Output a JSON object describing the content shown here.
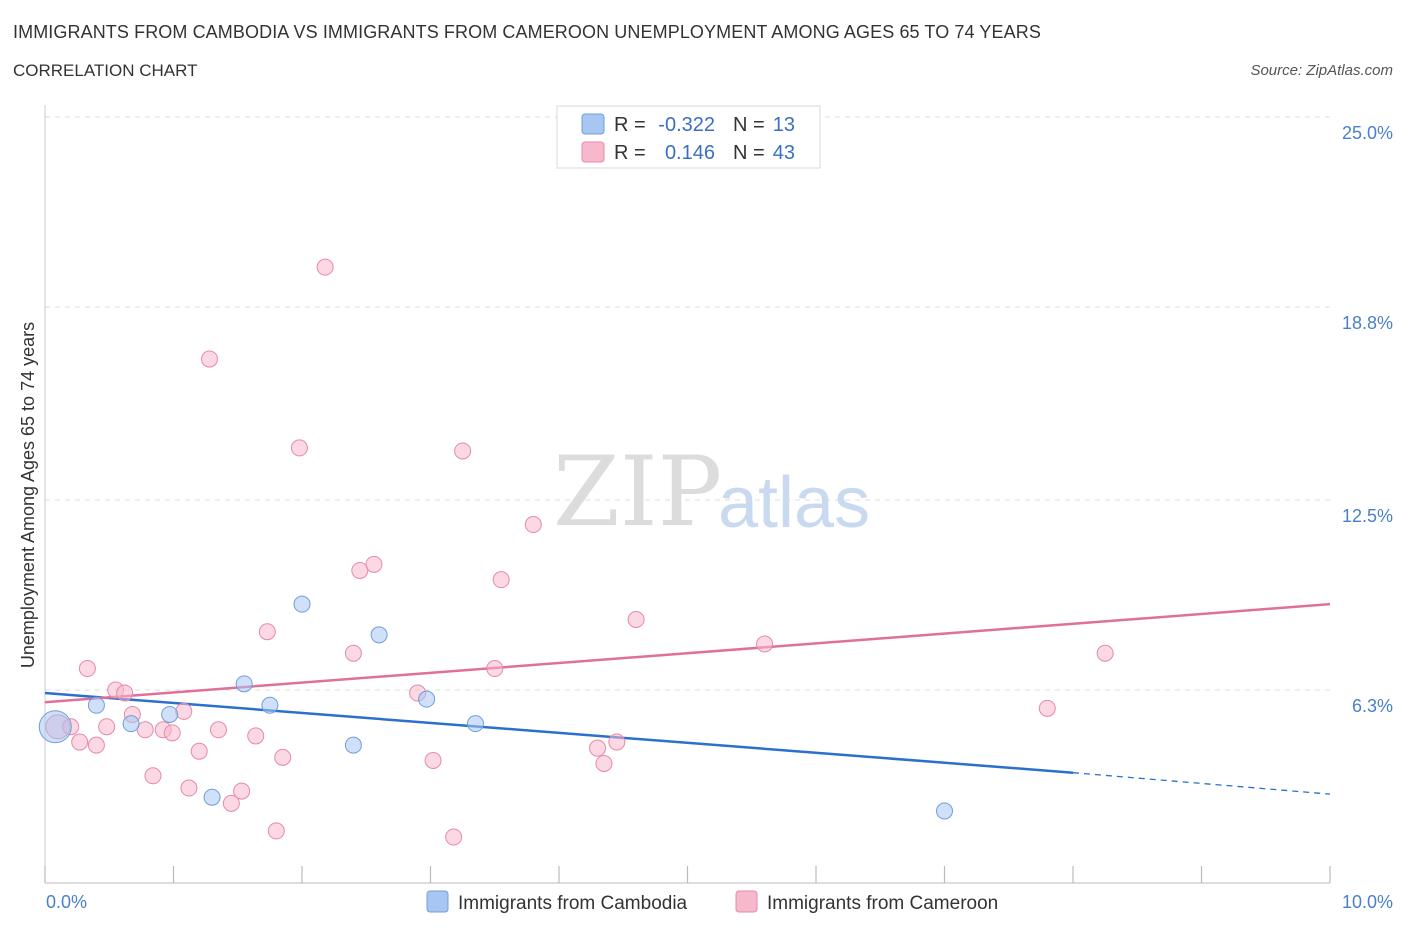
{
  "title": "IMMIGRANTS FROM CAMBODIA VS IMMIGRANTS FROM CAMEROON UNEMPLOYMENT AMONG AGES 65 TO 74 YEARS",
  "subtitle": "CORRELATION CHART",
  "source": "Source: ZipAtlas.com",
  "watermark": {
    "zip": "ZIP",
    "atlas": "atlas"
  },
  "legend": {
    "r_label": "R =",
    "n_label": "N =",
    "rows": [
      {
        "r": "-0.322",
        "n": "13",
        "color": "#a7c7f2"
      },
      {
        "r": "0.146",
        "n": "43",
        "color": "#f7b8cc"
      }
    ]
  },
  "chart_data": {
    "type": "scatter",
    "title": "IMMIGRANTS FROM CAMBODIA VS IMMIGRANTS FROM CAMEROON UNEMPLOYMENT AMONG AGES 65 TO 74 YEARS",
    "xlabel": "",
    "ylabel": "Unemployment Among Ages 65 to 74 years",
    "xlim": [
      0,
      10
    ],
    "ylim": [
      0,
      25
    ],
    "x_tick_labels": [
      "0.0%",
      "10.0%"
    ],
    "y_ticks": [
      6.3,
      12.5,
      18.8,
      25.0
    ],
    "y_tick_labels": [
      "6.3%",
      "12.5%",
      "18.8%",
      "25.0%"
    ],
    "grid": true,
    "legend_position": "top-center",
    "series": [
      {
        "name": "Immigrants from Cambodia",
        "color": "#a7c7f2",
        "edge": "#6f9edb",
        "line_color": "#2b6fcf",
        "trend": {
          "x0": 0,
          "y0": 6.2,
          "x1": 8.0,
          "y1": 3.6,
          "dash_to": 10.0,
          "dash_y": 2.9
        },
        "points": [
          [
            0.08,
            5.1,
            16
          ],
          [
            0.4,
            5.8,
            8
          ],
          [
            0.67,
            5.2,
            8
          ],
          [
            0.97,
            5.5,
            8
          ],
          [
            1.3,
            2.8,
            8
          ],
          [
            1.55,
            6.5,
            8
          ],
          [
            1.75,
            5.8,
            8
          ],
          [
            2.0,
            9.1,
            8
          ],
          [
            2.4,
            4.5,
            8
          ],
          [
            2.6,
            8.1,
            8
          ],
          [
            2.97,
            6.0,
            8
          ],
          [
            3.35,
            5.2,
            8
          ],
          [
            7.0,
            2.35,
            8
          ]
        ]
      },
      {
        "name": "Immigrants from Cameroon",
        "color": "#f7b8cc",
        "edge": "#e58aa8",
        "line_color": "#e0709a",
        "trend": {
          "x0": 0,
          "y0": 5.9,
          "x1": 10.0,
          "y1": 9.1
        },
        "points": [
          [
            0.1,
            5.1,
            12
          ],
          [
            0.2,
            5.1,
            8
          ],
          [
            0.27,
            4.6,
            8
          ],
          [
            0.33,
            7.0,
            8
          ],
          [
            0.4,
            4.5,
            8
          ],
          [
            0.48,
            5.1,
            8
          ],
          [
            0.55,
            6.3,
            8
          ],
          [
            0.62,
            6.2,
            8
          ],
          [
            0.68,
            5.5,
            8
          ],
          [
            0.78,
            5.0,
            8
          ],
          [
            0.84,
            3.5,
            8
          ],
          [
            0.92,
            5.0,
            8
          ],
          [
            0.99,
            4.9,
            8
          ],
          [
            1.08,
            5.6,
            8
          ],
          [
            1.12,
            3.1,
            8
          ],
          [
            1.2,
            4.3,
            8
          ],
          [
            1.28,
            17.1,
            8
          ],
          [
            1.35,
            5.0,
            8
          ],
          [
            1.45,
            2.6,
            8
          ],
          [
            1.53,
            3.0,
            8
          ],
          [
            1.64,
            4.8,
            8
          ],
          [
            1.73,
            8.2,
            8
          ],
          [
            1.8,
            1.7,
            8
          ],
          [
            1.85,
            4.1,
            8
          ],
          [
            1.98,
            14.2,
            8
          ],
          [
            2.18,
            20.1,
            8
          ],
          [
            2.4,
            7.5,
            8
          ],
          [
            2.45,
            10.2,
            8
          ],
          [
            2.56,
            10.4,
            8
          ],
          [
            2.9,
            6.2,
            8
          ],
          [
            3.02,
            4.0,
            8
          ],
          [
            3.18,
            1.5,
            8
          ],
          [
            3.25,
            14.1,
            8
          ],
          [
            3.5,
            7.0,
            8
          ],
          [
            3.55,
            9.9,
            8
          ],
          [
            3.8,
            11.7,
            8
          ],
          [
            4.3,
            4.4,
            8
          ],
          [
            4.35,
            3.9,
            8
          ],
          [
            4.45,
            4.6,
            8
          ],
          [
            4.6,
            8.6,
            8
          ],
          [
            5.6,
            7.8,
            8
          ],
          [
            7.8,
            5.7,
            8
          ],
          [
            8.25,
            7.5,
            8
          ]
        ]
      }
    ]
  }
}
